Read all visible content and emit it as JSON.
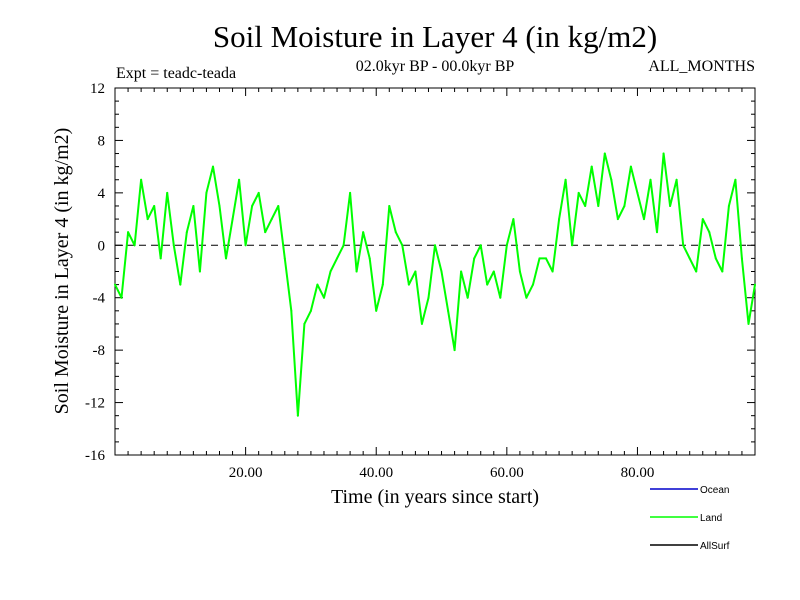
{
  "chart_data": {
    "type": "line",
    "title": "Soil Moisture in Layer 4 (in kg/m2)",
    "subtitle_left": "Expt = teadc-teada",
    "subtitle_center": "02.0kyr BP - 00.0kyr BP",
    "subtitle_right": "ALL_MONTHS",
    "xlabel": "Time (in years since start)",
    "ylabel": "Soil Moisture in Layer 4 (in kg/m2)",
    "xlim": [
      0,
      98
    ],
    "ylim": [
      -16,
      12
    ],
    "x_ticks": [
      20,
      40,
      60,
      80
    ],
    "x_tick_labels": [
      "20.00",
      "40.00",
      "60.00",
      "80.00"
    ],
    "y_ticks": [
      -16,
      -12,
      -8,
      -4,
      0,
      4,
      8,
      12
    ],
    "y_tick_labels": [
      "-16",
      "-12",
      "-8",
      "-4",
      "0",
      "4",
      "8",
      "12"
    ],
    "zero_line": "dashed",
    "legend": [
      {
        "name": "Ocean",
        "color": "#0000cc"
      },
      {
        "name": "Land",
        "color": "#00ff00"
      },
      {
        "name": "AllSurf",
        "color": "#000000"
      }
    ],
    "series": [
      {
        "name": "Land",
        "color": "#00ff00",
        "x": [
          0,
          1,
          2,
          3,
          4,
          5,
          6,
          7,
          8,
          9,
          10,
          11,
          12,
          13,
          14,
          15,
          16,
          17,
          18,
          19,
          20,
          21,
          22,
          23,
          24,
          25,
          26,
          27,
          28,
          29,
          30,
          31,
          32,
          33,
          34,
          35,
          36,
          37,
          38,
          39,
          40,
          41,
          42,
          43,
          44,
          45,
          46,
          47,
          48,
          49,
          50,
          51,
          52,
          53,
          54,
          55,
          56,
          57,
          58,
          59,
          60,
          61,
          62,
          63,
          64,
          65,
          66,
          67,
          68,
          69,
          70,
          71,
          72,
          73,
          74,
          75,
          76,
          77,
          78,
          79,
          80,
          81,
          82,
          83,
          84,
          85,
          86,
          87,
          88,
          89,
          90,
          91,
          92,
          93,
          94,
          95,
          96,
          97,
          98
        ],
        "values": [
          -3,
          -4,
          1,
          0,
          5,
          2,
          3,
          -1,
          4,
          0,
          -3,
          1,
          3,
          -2,
          4,
          6,
          3,
          -1,
          2,
          5,
          0,
          3,
          4,
          1,
          2,
          3,
          -1,
          -5,
          -13,
          -6,
          -5,
          -3,
          -4,
          -2,
          -1,
          0,
          4,
          -2,
          1,
          -1,
          -5,
          -3,
          3,
          1,
          0,
          -3,
          -2,
          -6,
          -4,
          0,
          -2,
          -5,
          -8,
          -2,
          -4,
          -1,
          0,
          -3,
          -2,
          -4,
          0,
          2,
          -2,
          -4,
          -3,
          -1,
          -1,
          -2,
          2,
          5,
          0,
          4,
          3,
          6,
          3,
          7,
          5,
          2,
          3,
          6,
          4,
          2,
          5,
          1,
          7,
          3,
          5,
          0,
          -1,
          -2,
          2,
          1,
          -1,
          -2,
          3,
          5,
          -1,
          -6,
          -3
        ]
      }
    ]
  }
}
